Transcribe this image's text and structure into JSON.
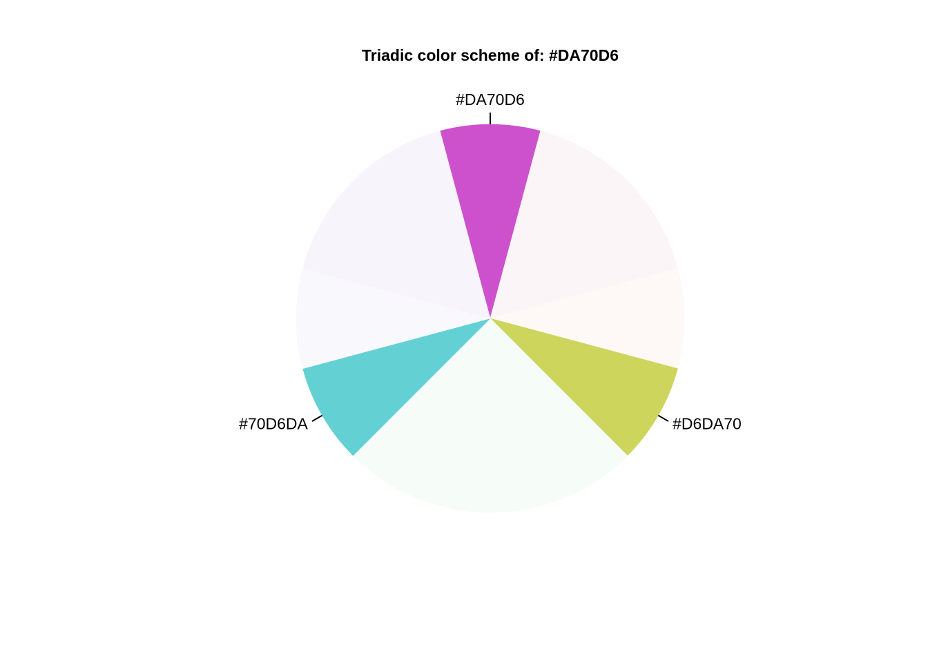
{
  "chart_data": {
    "type": "pie",
    "title": "Triadic color scheme of:  #DA70D6",
    "slices": [
      {
        "name": "#DA70D6",
        "start_angle": -15,
        "end_angle": 15,
        "color": "#CD51CD",
        "labeled": true
      },
      {
        "name": "",
        "start_angle": 15,
        "end_angle": 75,
        "color": "#FCF5F8",
        "labeled": false
      },
      {
        "name": "",
        "start_angle": 75,
        "end_angle": 105,
        "color": "#FEF8F6",
        "labeled": false
      },
      {
        "name": "#D6DA70",
        "start_angle": 105,
        "end_angle": 135,
        "color": "#CDD55D",
        "labeled": true
      },
      {
        "name": "",
        "start_angle": 135,
        "end_angle": 225,
        "color": "#F6FCF7",
        "labeled": false
      },
      {
        "name": "#70D6DA",
        "start_angle": 225,
        "end_angle": 255,
        "color": "#63D0D4",
        "labeled": true
      },
      {
        "name": "",
        "start_angle": 255,
        "end_angle": 285,
        "color": "#F8F8FD",
        "labeled": false
      },
      {
        "name": "",
        "start_angle": 285,
        "end_angle": 345,
        "color": "#F7F4FC",
        "labeled": false
      }
    ],
    "angle_units": "degrees clockwise from top",
    "grid": false,
    "legend": "none"
  }
}
